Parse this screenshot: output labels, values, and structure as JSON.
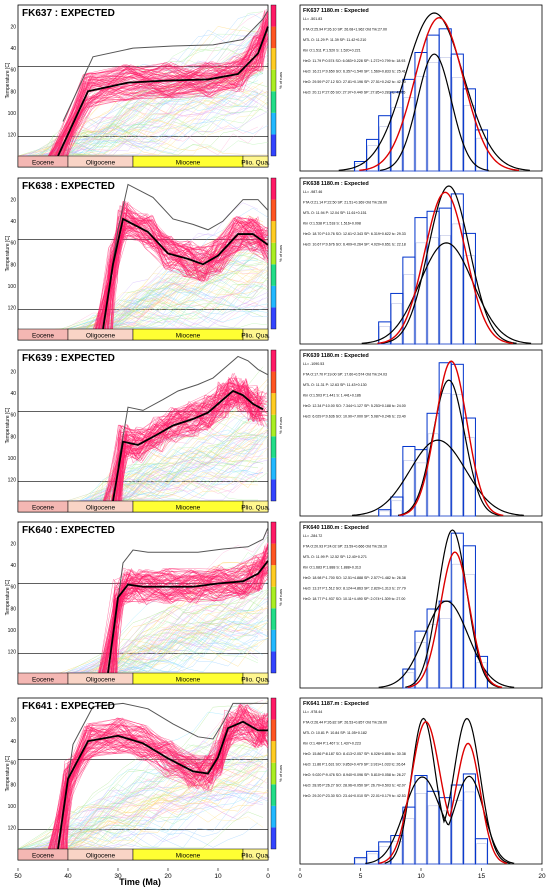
{
  "figure": {
    "left_xlabel": "Time (Ma)",
    "right_xlabel": "",
    "left_xticks": [
      "50",
      "40",
      "30",
      "20",
      "10",
      "0"
    ],
    "right_xticks": [
      "0",
      "5",
      "10",
      "15",
      "20"
    ],
    "epochs": [
      {
        "label": "Eocene",
        "from": 50,
        "to": 40,
        "color": "#f4b7b3"
      },
      {
        "label": "Oligocene",
        "from": 40,
        "to": 27,
        "color": "#f9d4c6"
      },
      {
        "label": "Miocene",
        "from": 27,
        "to": 5,
        "color": "#ffff33"
      },
      {
        "label": "Plio. Qua.",
        "from": 5,
        "to": 0,
        "color": "#fff68f"
      }
    ],
    "temp_label": "Temperature [C]",
    "temp_ticks": [
      "20",
      "40",
      "60",
      "80",
      "100",
      "120"
    ],
    "color_label": "% of runs",
    "colors": {
      "paths": "#ff1a66",
      "best": "#000000",
      "envelope": "#555555",
      "hist": "#0033cc",
      "obs": "#000000",
      "model": "#dd0000"
    }
  },
  "chart_data": [
    {
      "type": "line",
      "title": "FK637 : EXPECTED",
      "xlim": [
        50,
        0
      ],
      "ylim": [
        140,
        0
      ],
      "series": [
        {
          "x": [
            42,
            36,
            28,
            20,
            12,
            6,
            2,
            0
          ],
          "y": [
            140,
            80,
            72,
            70,
            69,
            64,
            45,
            20
          ]
        }
      ],
      "side_title": "FK637 1180.m : Expected",
      "side_text": [
        "LL= -501.83",
        "FTA O:25.94 P:26.10 SP: 26.08+1.962 Old Trk:27.00",
        "MTL O: 11.29 P: 11.39 SP: 11.42+0.210",
        "Kin O:1.511 P:1.520 S: 1.520+0.221",
        "HeO: 11.79 P:0.574 SO: 6.083+0.228 SP: 1.272+0.799 tc: 18.93",
        "HeO: 16.21 P:0.650 SO: 6.357+1.540 SP: 1.569+0.833 tc: 25.41",
        "HeO: 29.59 P:27.12 SO: 27.81+0.196 SP: 27.51+0.242 tc: 42.10",
        "HeO: 20.11 P:27.65 SO: 27.97+0.440 SP: 27.85+0.283 tc: 42.55"
      ],
      "hist": {
        "edges": [
          4.5,
          5.5,
          6.5,
          7.5,
          8.5,
          9.5,
          10.5,
          11.5,
          12.5,
          13.5,
          14.5,
          15.5
        ],
        "heights": [
          0.06,
          0.2,
          0.35,
          0.5,
          0.58,
          0.75,
          0.86,
          0.9,
          0.74,
          0.52,
          0.26
        ]
      },
      "obs": [
        {
          "mu": 11.1,
          "sigma": 2.4,
          "amp": 1.0
        },
        {
          "mu": 11.1,
          "sigma": 1.4,
          "amp": 0.74
        }
      ],
      "model": {
        "mu": 11.5,
        "sigma": 2.0,
        "amp": 0.97
      }
    },
    {
      "type": "line",
      "title": "FK638 : EXPECTED",
      "xlim": [
        50,
        0
      ],
      "ylim": [
        140,
        0
      ],
      "series": [
        {
          "x": [
            33,
            31,
            29,
            24,
            20,
            16,
            13,
            10,
            6,
            3,
            0
          ],
          "y": [
            140,
            80,
            38,
            50,
            70,
            75,
            80,
            72,
            52,
            52,
            62
          ]
        }
      ],
      "side_title": "FK638 1180.m : Expected",
      "side_text": [
        "LL= -987.46",
        "FTA O:21.14 P:22.50 SP: 21.51+0.369 Old Trk:28.00",
        "MTL O: 11.94 P: 12.04 SP: 11.61+0.151",
        "Kin O:1.538 P:1.518 S: 1.516+0.098",
        "HeO: 18.70 P:10.76 SO: 12.61+2.343 SP: 6.319+0.622 tc: 29.33",
        "HeO: 10.67 P:0.676 SO: 6.409+0.264 SP: 4.020+0.651 tc: 22.18"
      ],
      "hist": {
        "edges": [
          6.5,
          7.5,
          8.5,
          9.5,
          10.5,
          11.5,
          12.5,
          13.5,
          14.5
        ],
        "heights": [
          0.14,
          0.32,
          0.55,
          0.8,
          0.84,
          0.86,
          0.95,
          0.7
        ]
      },
      "obs": [
        {
          "mu": 12.3,
          "sigma": 1.7,
          "amp": 1.0
        },
        {
          "mu": 12.1,
          "sigma": 2.2,
          "amp": 0.64
        }
      ],
      "model": {
        "mu": 12.0,
        "sigma": 1.7,
        "amp": 0.96
      }
    },
    {
      "type": "line",
      "title": "FK639 : EXPECTED",
      "xlim": [
        50,
        0
      ],
      "ylim": [
        140,
        0
      ],
      "series": [
        {
          "x": [
            31,
            29,
            26,
            22,
            19,
            15,
            12,
            9,
            7,
            5,
            3,
            1
          ],
          "y": [
            140,
            85,
            88,
            78,
            70,
            64,
            58,
            46,
            38,
            42,
            50,
            55
          ]
        }
      ],
      "side_title": "FK639 1180.m : Expected",
      "side_text": [
        "LL= -1090.53",
        "FTA O:17.70 P:19.00 SP: 17.60+0.574 Old Trk:24.03",
        "MTL O: 11.31 P: 12.63 SP: 11.43+0.130",
        "Kin O:1.503 P:1.441 S: 1.441+0.186",
        "HeO: 12.34 P:10.00 SO: 7.344+1.127 SP: 5.253+0.188 tc: 24.00",
        "HeO: 6.029 P:0.636 SO: 10.90+7.000 SP: 5.087+0.246 tc: 23.40"
      ],
      "hist": {
        "edges": [
          6.5,
          7.5,
          8.5,
          9.5,
          10.5,
          11.5,
          12.5,
          13.5,
          14.5
        ],
        "heights": [
          0.04,
          0.12,
          0.44,
          0.42,
          0.65,
          0.97,
          0.96,
          0.62
        ]
      },
      "obs": [
        {
          "mu": 12.3,
          "sigma": 1.3,
          "amp": 0.86
        },
        {
          "mu": 11.4,
          "sigma": 2.3,
          "amp": 0.48
        }
      ],
      "model": {
        "mu": 12.5,
        "sigma": 1.3,
        "amp": 0.98
      }
    },
    {
      "type": "line",
      "title": "FK640 : EXPECTED",
      "xlim": [
        50,
        0
      ],
      "ylim": [
        140,
        0
      ],
      "series": [
        {
          "x": [
            32,
            30,
            28,
            25,
            20,
            15,
            10,
            5,
            2,
            0
          ],
          "y": [
            140,
            70,
            58,
            60,
            60,
            60,
            57,
            55,
            48,
            36
          ]
        }
      ],
      "side_title": "FK640 1180.m : Expected",
      "side_text": [
        "LL= -284.72",
        "FTA O:20.93 P:24.02 SP: 23.59+0.666 Old Trk:28.10",
        "MTL O: 11.99 P: 12.52 SP: 12.40+0.271",
        "Kin O:1.683 P:1.888 S: 1.888+0.313",
        "HeO: 18.98 P:1.700 SO: 12.51+4.888 SP: 2.577+1.482 tc: 26.38",
        "HeO: 13.37 P:1.512 SO: 8.124+4.863 SP: 2.820+1.313 tc: 27.79",
        "HeO: 18.77 P:1.937 SO: 10.11+4.490 SP: 2.074+1.309 tc: 27.00"
      ],
      "hist": {
        "edges": [
          8.5,
          9.5,
          10.5,
          11.5,
          12.5,
          13.5,
          14.5,
          15.5
        ],
        "heights": [
          0.12,
          0.36,
          0.5,
          0.55,
          0.98,
          0.9,
          0.2
        ]
      },
      "obs": [
        {
          "mu": 12.1,
          "sigma": 1.8,
          "amp": 0.55
        },
        {
          "mu": 12.6,
          "sigma": 1.2,
          "amp": 1.0
        }
      ],
      "model": {
        "mu": 12.8,
        "sigma": 1.2,
        "amp": 0.86
      }
    },
    {
      "type": "line",
      "title": "FK641 : EXPECTED",
      "xlim": [
        50,
        0
      ],
      "ylim": [
        140,
        0
      ],
      "series": [
        {
          "x": [
            42,
            40,
            36,
            30,
            25,
            20,
            15,
            12,
            10,
            8,
            5,
            2,
            0
          ],
          "y": [
            140,
            75,
            40,
            35,
            42,
            56,
            68,
            70,
            55,
            28,
            22,
            30,
            30
          ]
        }
      ],
      "side_title": "FK641 1187.m : Expected",
      "side_text": [
        "LL= -978.44",
        "FTA O:26.44 P:26.82 SP: 26.53+0.857 Old Trk:28.00",
        "MTL O: 10.81 P: 10.84 SP: 11.05+0.182",
        "Kin O:1.484 P:1.467 S: 1.437+0.223",
        "HeO: 15.86 P:8.187 SO: 8.413+2.057 SP: 6.026+0.805 tc: 30.38",
        "HeO: 11.86 P:1.631 SO: 9.853+0.479 SP: 3.919+1.033 tc: 26.64",
        "HeO: 9.020 P:9.476 SO: 8.940+0.096 SP: 5.810+0.058 tc: 26.27",
        "HeO: 28.95 P:26.27 SO: 28.96+0.050 SP: 26.70+0.503 tc: 42.07",
        "HeO: 29.20 P:23.30 SO: 23.44+0.010 SP: 22.01+0.179 tc: 42.53"
      ],
      "hist": {
        "edges": [
          4.5,
          5.5,
          6.5,
          7.5,
          8.5,
          9.5,
          10.5,
          11.5,
          12.5,
          13.5,
          14.5,
          15.5
        ],
        "heights": [
          0.04,
          0.08,
          0.14,
          0.18,
          0.36,
          0.56,
          0.46,
          0.42,
          0.5,
          0.57,
          0.16
        ]
      },
      "obs": [
        {
          "mu": 10.2,
          "sigma": 1.0,
          "amp": 0.92,
          "mu2": 13.8,
          "sigma2": 1.1,
          "amp2": 0.92
        },
        {
          "mu": 10.1,
          "sigma": 1.5,
          "amp": 0.55,
          "mu2": 14.0,
          "sigma2": 1.2,
          "amp2": 0.55
        }
      ],
      "model": {
        "mu": 10.4,
        "sigma": 1.2,
        "amp": 0.9,
        "mu2": 13.9,
        "sigma2": 1.0,
        "amp2": 0.76
      }
    }
  ]
}
